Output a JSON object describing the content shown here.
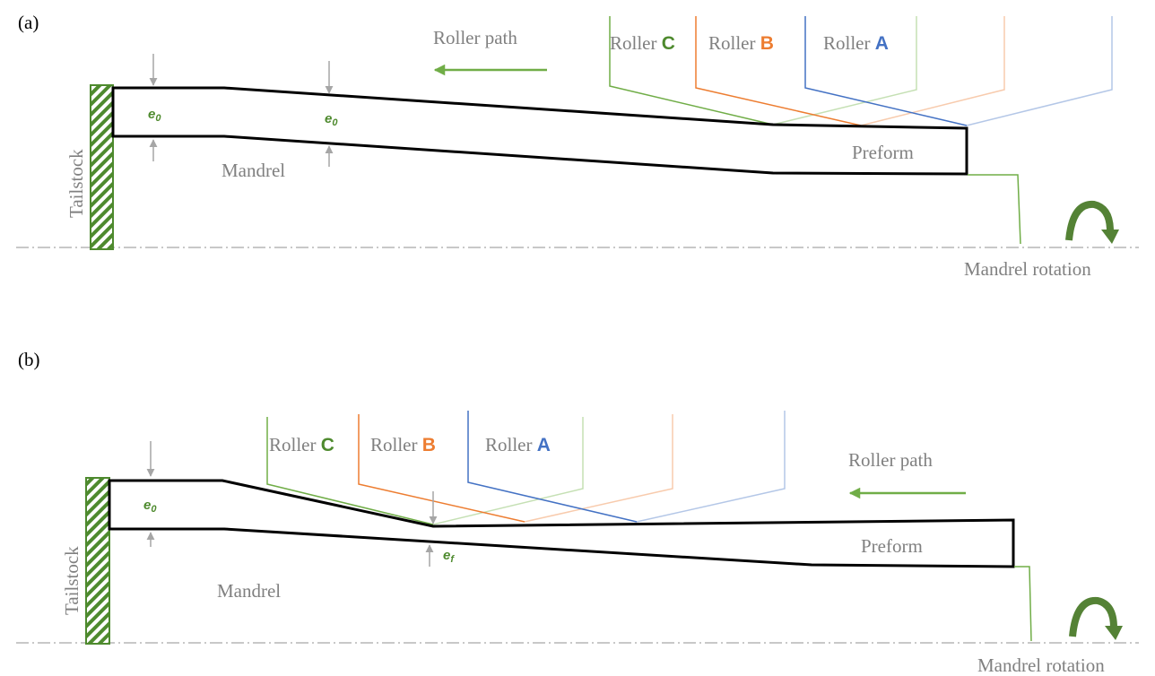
{
  "panels": [
    {
      "label": "(a)",
      "roller_path": "Roller path",
      "rollers": [
        {
          "name": "Roller",
          "letter": "C"
        },
        {
          "name": "Roller",
          "letter": "B"
        },
        {
          "name": "Roller",
          "letter": "A"
        }
      ],
      "thickness_labels": [
        {
          "symbol": "e",
          "subscript": "0"
        },
        {
          "symbol": "e",
          "subscript": "0"
        }
      ],
      "tailstock": "Tailstock",
      "mandrel": "Mandrel",
      "preform": "Preform",
      "rotation": "Mandrel rotation"
    },
    {
      "label": "(b)",
      "roller_path": "Roller path",
      "rollers": [
        {
          "name": "Roller",
          "letter": "C"
        },
        {
          "name": "Roller",
          "letter": "B"
        },
        {
          "name": "Roller",
          "letter": "A"
        }
      ],
      "thickness_labels": [
        {
          "symbol": "e",
          "subscript": "0"
        },
        {
          "symbol": "e",
          "subscript": "f"
        }
      ],
      "tailstock": "Tailstock",
      "mandrel": "Mandrel",
      "preform": "Preform",
      "rotation": "Mandrel rotation"
    }
  ]
}
